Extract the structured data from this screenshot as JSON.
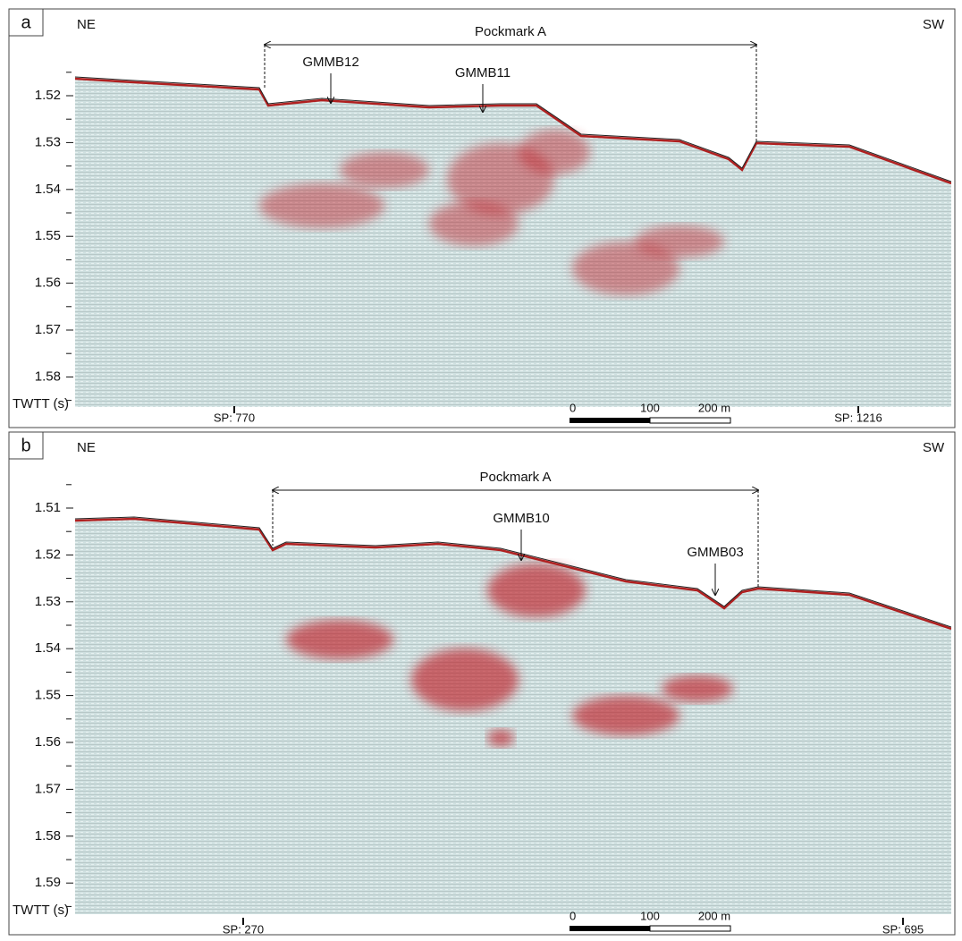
{
  "panels": [
    {
      "label": "a",
      "left": "NE",
      "right": "SW",
      "feature": "Pockmark A",
      "cores": [
        "GMMB12",
        "GMMB11"
      ],
      "yticks": [
        "1.52",
        "1.53",
        "1.54",
        "1.55",
        "1.56",
        "1.57",
        "1.58"
      ],
      "y_axis_label": "TWTT (s)",
      "shotpoints": [
        "SP: 770",
        "SP: 1216"
      ],
      "scale_bar": [
        "0",
        "100",
        "200 m"
      ]
    },
    {
      "label": "b",
      "left": "NE",
      "right": "SW",
      "feature": "Pockmark A",
      "cores": [
        "GMMB10",
        "GMMB03"
      ],
      "yticks": [
        "1.51",
        "1.52",
        "1.53",
        "1.54",
        "1.55",
        "1.56",
        "1.57",
        "1.58",
        "1.59"
      ],
      "y_axis_label": "TWTT (s)",
      "shotpoints": [
        "SP: 270",
        "SP: 695"
      ],
      "scale_bar": [
        "0",
        "100",
        "200 m"
      ]
    }
  ]
}
